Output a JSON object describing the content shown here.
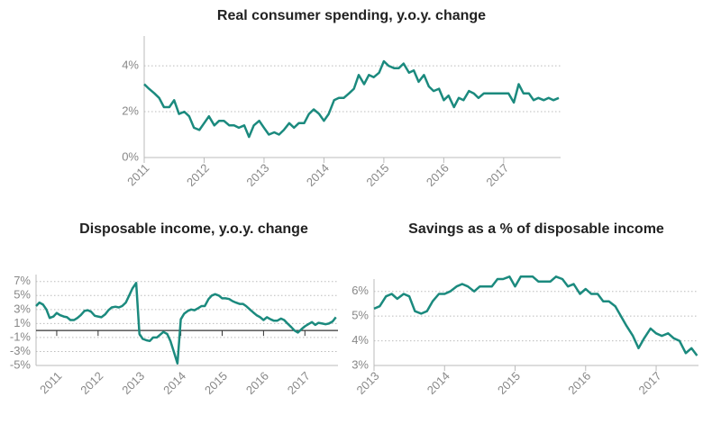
{
  "chart_data": [
    {
      "type": "line",
      "title": "Real consumer spending, y.o.y. change",
      "color": "#1b8a7e",
      "grid": true,
      "xlim": [
        2011,
        2017.95
      ],
      "xticks": [
        2011,
        2012,
        2013,
        2014,
        2015,
        2016,
        2017
      ],
      "ylim": [
        0,
        5.3
      ],
      "yticks": [
        {
          "value": 0,
          "label": "0%"
        },
        {
          "value": 2,
          "label": "2%"
        },
        {
          "value": 4,
          "label": "4%"
        }
      ],
      "x": [
        2011,
        2011.08,
        2011.17,
        2011.25,
        2011.33,
        2011.42,
        2011.5,
        2011.58,
        2011.67,
        2011.75,
        2011.83,
        2011.92,
        2012,
        2012.08,
        2012.17,
        2012.25,
        2012.33,
        2012.42,
        2012.5,
        2012.58,
        2012.67,
        2012.75,
        2012.83,
        2012.92,
        2013,
        2013.08,
        2013.17,
        2013.25,
        2013.33,
        2013.42,
        2013.5,
        2013.58,
        2013.67,
        2013.75,
        2013.83,
        2013.92,
        2014,
        2014.08,
        2014.17,
        2014.25,
        2014.33,
        2014.42,
        2014.5,
        2014.58,
        2014.67,
        2014.75,
        2014.83,
        2014.92,
        2015,
        2015.08,
        2015.17,
        2015.25,
        2015.33,
        2015.42,
        2015.5,
        2015.58,
        2015.67,
        2015.75,
        2015.83,
        2015.92,
        2016,
        2016.08,
        2016.17,
        2016.25,
        2016.33,
        2016.42,
        2016.5,
        2016.58,
        2016.67,
        2016.75,
        2016.83,
        2016.92,
        2017,
        2017.08,
        2017.17,
        2017.25,
        2017.33,
        2017.42,
        2017.5,
        2017.58,
        2017.67,
        2017.75,
        2017.83,
        2017.92
      ],
      "values": [
        3.2,
        3.0,
        2.8,
        2.6,
        2.2,
        2.2,
        2.5,
        1.9,
        2.0,
        1.8,
        1.3,
        1.2,
        1.5,
        1.8,
        1.4,
        1.6,
        1.6,
        1.4,
        1.4,
        1.3,
        1.4,
        0.9,
        1.4,
        1.6,
        1.3,
        1.0,
        1.1,
        1.0,
        1.2,
        1.5,
        1.3,
        1.5,
        1.5,
        1.9,
        2.1,
        1.9,
        1.6,
        1.9,
        2.5,
        2.6,
        2.6,
        2.8,
        3.0,
        3.6,
        3.2,
        3.6,
        3.5,
        3.7,
        4.2,
        4.0,
        3.9,
        3.9,
        4.1,
        3.7,
        3.8,
        3.3,
        3.6,
        3.1,
        2.9,
        3.0,
        2.5,
        2.7,
        2.2,
        2.6,
        2.5,
        2.9,
        2.8,
        2.6,
        2.8,
        2.8,
        2.8,
        2.8,
        2.8,
        2.8,
        2.4,
        3.2,
        2.8,
        2.8,
        2.5,
        2.6,
        2.5,
        2.6,
        2.5,
        2.6
      ]
    },
    {
      "type": "line",
      "title": "Disposable income, y.o.y. change",
      "color": "#1b8a7e",
      "grid": true,
      "xlim": [
        2010.5,
        2017.8
      ],
      "xticks": [
        2011,
        2012,
        2013,
        2014,
        2015,
        2016,
        2017
      ],
      "ylim": [
        -5,
        8
      ],
      "yticks": [
        {
          "value": -5,
          "label": "-5%"
        },
        {
          "value": -3,
          "label": "-3%"
        },
        {
          "value": -1,
          "label": "-1%"
        },
        {
          "value": 1,
          "label": "1%"
        },
        {
          "value": 3,
          "label": "3%"
        },
        {
          "value": 5,
          "label": "5%"
        },
        {
          "value": 7,
          "label": "7%"
        }
      ],
      "x": [
        2010.5,
        2010.58,
        2010.67,
        2010.75,
        2010.83,
        2010.92,
        2011,
        2011.08,
        2011.17,
        2011.25,
        2011.33,
        2011.42,
        2011.5,
        2011.58,
        2011.67,
        2011.75,
        2011.83,
        2011.92,
        2012,
        2012.08,
        2012.17,
        2012.25,
        2012.33,
        2012.42,
        2012.5,
        2012.58,
        2012.67,
        2012.75,
        2012.83,
        2012.92,
        2013,
        2013.08,
        2013.17,
        2013.25,
        2013.33,
        2013.42,
        2013.5,
        2013.58,
        2013.67,
        2013.75,
        2013.83,
        2013.92,
        2014,
        2014.08,
        2014.17,
        2014.25,
        2014.33,
        2014.42,
        2014.5,
        2014.58,
        2014.67,
        2014.75,
        2014.83,
        2014.92,
        2015,
        2015.08,
        2015.17,
        2015.25,
        2015.33,
        2015.42,
        2015.5,
        2015.58,
        2015.67,
        2015.75,
        2015.83,
        2015.92,
        2016,
        2016.08,
        2016.17,
        2016.25,
        2016.33,
        2016.42,
        2016.5,
        2016.58,
        2016.67,
        2016.75,
        2016.83,
        2016.92,
        2017,
        2017.08,
        2017.17,
        2017.25,
        2017.33,
        2017.42,
        2017.5,
        2017.58,
        2017.67,
        2017.75
      ],
      "values": [
        3.5,
        4.0,
        3.7,
        3.0,
        1.8,
        2.0,
        2.5,
        2.2,
        2.0,
        1.9,
        1.5,
        1.5,
        1.8,
        2.2,
        2.8,
        2.9,
        2.7,
        2.1,
        2.0,
        1.9,
        2.3,
        2.9,
        3.3,
        3.4,
        3.3,
        3.5,
        4.0,
        5.0,
        6.0,
        6.8,
        -0.5,
        -1.2,
        -1.4,
        -1.5,
        -1.0,
        -1.0,
        -0.6,
        -0.2,
        -0.5,
        -1.5,
        -3.0,
        -4.7,
        1.6,
        2.4,
        2.8,
        3.0,
        2.9,
        3.2,
        3.5,
        3.5,
        4.5,
        5.0,
        5.2,
        5.0,
        4.6,
        4.6,
        4.5,
        4.2,
        4.0,
        3.8,
        3.8,
        3.5,
        3.0,
        2.6,
        2.2,
        1.9,
        1.5,
        1.9,
        1.6,
        1.4,
        1.4,
        1.7,
        1.5,
        1.0,
        0.5,
        0.0,
        -0.3,
        0.2,
        0.6,
        0.9,
        1.2,
        0.8,
        1.1,
        1.0,
        0.9,
        1.0,
        1.3,
        1.9
      ]
    },
    {
      "type": "line",
      "title": "Savings as a % of disposable income",
      "color": "#1b8a7e",
      "grid": true,
      "xlim": [
        2013,
        2017.6
      ],
      "xticks": [
        2013,
        2014,
        2015,
        2016,
        2017
      ],
      "ylim": [
        3,
        6.5
      ],
      "yticks": [
        {
          "value": 3,
          "label": "3%"
        },
        {
          "value": 4,
          "label": "4%"
        },
        {
          "value": 5,
          "label": "5%"
        },
        {
          "value": 6,
          "label": "6%"
        }
      ],
      "x": [
        2013,
        2013.08,
        2013.17,
        2013.25,
        2013.33,
        2013.42,
        2013.5,
        2013.58,
        2013.67,
        2013.75,
        2013.83,
        2013.92,
        2014,
        2014.08,
        2014.17,
        2014.25,
        2014.33,
        2014.42,
        2014.5,
        2014.58,
        2014.67,
        2014.75,
        2014.83,
        2014.92,
        2015,
        2015.08,
        2015.17,
        2015.25,
        2015.33,
        2015.42,
        2015.5,
        2015.58,
        2015.67,
        2015.75,
        2015.83,
        2015.92,
        2016,
        2016.08,
        2016.17,
        2016.25,
        2016.33,
        2016.42,
        2016.5,
        2016.58,
        2016.67,
        2016.75,
        2016.83,
        2016.92,
        2017,
        2017.08,
        2017.17,
        2017.25,
        2017.33,
        2017.42,
        2017.5,
        2017.58
      ],
      "values": [
        5.3,
        5.4,
        5.8,
        5.9,
        5.7,
        5.9,
        5.8,
        5.2,
        5.1,
        5.2,
        5.6,
        5.9,
        5.9,
        6.0,
        6.2,
        6.3,
        6.2,
        6.0,
        6.2,
        6.2,
        6.2,
        6.5,
        6.5,
        6.6,
        6.2,
        6.6,
        6.6,
        6.6,
        6.4,
        6.4,
        6.4,
        6.6,
        6.5,
        6.2,
        6.3,
        5.9,
        6.1,
        5.9,
        5.9,
        5.6,
        5.6,
        5.4,
        5.0,
        4.6,
        4.2,
        3.7,
        4.1,
        4.5,
        4.3,
        4.2,
        4.3,
        4.1,
        4.0,
        3.5,
        3.7,
        3.4
      ]
    }
  ]
}
